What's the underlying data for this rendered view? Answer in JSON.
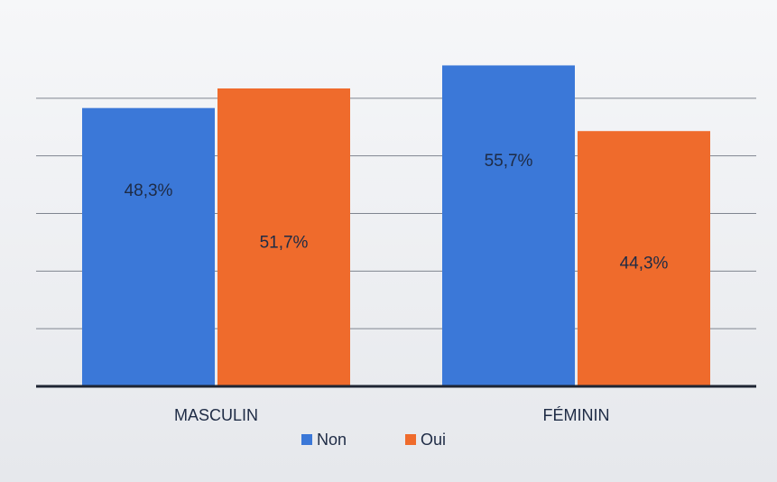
{
  "chart_data": {
    "type": "bar",
    "categories": [
      "MASCULIN",
      "FÉMININ"
    ],
    "series": [
      {
        "name": "Non",
        "color": "#3b78d8",
        "values": [
          48.3,
          55.7
        ],
        "value_labels": [
          "48,3%",
          "55,7%"
        ]
      },
      {
        "name": "Oui",
        "color": "#ef6b2c",
        "values": [
          51.7,
          44.3
        ],
        "value_labels": [
          "51,7%",
          "44,3%"
        ]
      }
    ],
    "ylim": [
      0,
      60
    ],
    "yticks": [
      0,
      10,
      20,
      30,
      40,
      50
    ],
    "grid": true,
    "legend": "bottom"
  }
}
